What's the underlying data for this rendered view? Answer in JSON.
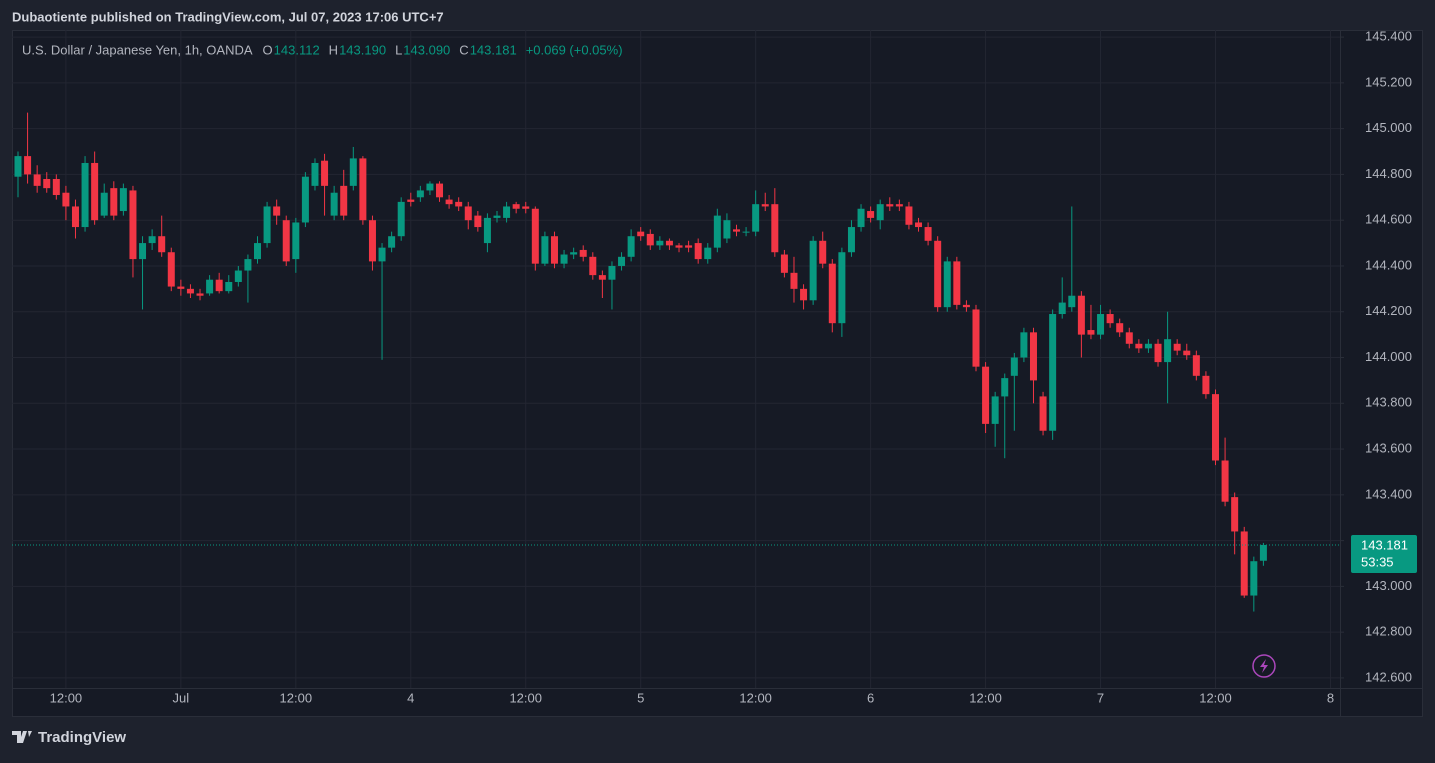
{
  "page": {
    "published": "Dubaotiente published on TradingView.com, Jul 07, 2023 17:06 UTC+7",
    "brand": "TradingView"
  },
  "chart_data": {
    "type": "candlestick",
    "title": "U.S. Dollar / Japanese Yen, 1h, OANDA",
    "header_values": [
      {
        "key": "O",
        "value": "143.112"
      },
      {
        "key": "H",
        "value": "143.190"
      },
      {
        "key": "L",
        "value": "143.090"
      },
      {
        "key": "C",
        "value": "143.181"
      }
    ],
    "change": "+0.069 (+0.05%)",
    "countdown": "53:35",
    "up_color": "#089981",
    "down_color": "#f23645",
    "grid": true,
    "ylim": [
      142.556,
      145.431
    ],
    "yticks": [
      {
        "value": 142.6,
        "label": "142.600"
      },
      {
        "value": 142.8,
        "label": "142.800"
      },
      {
        "value": 143.0,
        "label": "143.000"
      },
      {
        "value": 143.2,
        "label": "143.200"
      },
      {
        "value": 143.4,
        "label": "143.400"
      },
      {
        "value": 143.6,
        "label": "143.600"
      },
      {
        "value": 143.8,
        "label": "143.800"
      },
      {
        "value": 144.0,
        "label": "144.000"
      },
      {
        "value": 144.2,
        "label": "144.200"
      },
      {
        "value": 144.4,
        "label": "144.400"
      },
      {
        "value": 144.6,
        "label": "144.600"
      },
      {
        "value": 144.8,
        "label": "144.800"
      },
      {
        "value": 145.0,
        "label": "145.000"
      },
      {
        "value": 145.2,
        "label": "145.200"
      },
      {
        "value": 145.4,
        "label": "145.400"
      }
    ],
    "categories": [
      null,
      null,
      null,
      null,
      null,
      "12:00",
      null,
      null,
      null,
      null,
      null,
      null,
      null,
      null,
      null,
      null,
      null,
      "Jul",
      null,
      null,
      null,
      null,
      null,
      null,
      null,
      null,
      null,
      null,
      null,
      "12:00",
      null,
      null,
      null,
      null,
      null,
      null,
      null,
      null,
      null,
      null,
      null,
      "4",
      null,
      null,
      null,
      null,
      null,
      null,
      null,
      null,
      null,
      null,
      null,
      "12:00",
      null,
      null,
      null,
      null,
      null,
      null,
      null,
      null,
      null,
      null,
      null,
      "5",
      null,
      null,
      null,
      null,
      null,
      null,
      null,
      null,
      null,
      null,
      null,
      "12:00",
      null,
      null,
      null,
      null,
      null,
      null,
      null,
      null,
      null,
      null,
      null,
      "6",
      null,
      null,
      null,
      null,
      null,
      null,
      null,
      null,
      null,
      null,
      null,
      "12:00",
      null,
      null,
      null,
      null,
      null,
      null,
      null,
      null,
      null,
      null,
      null,
      "7",
      null,
      null,
      null,
      null,
      null,
      null,
      null,
      null,
      null,
      null,
      null,
      "12:00",
      null,
      null,
      null,
      null,
      null,
      null,
      null,
      null,
      null,
      null,
      null,
      "8"
    ],
    "open": [
      144.79,
      144.88,
      144.8,
      144.78,
      144.78,
      144.72,
      144.66,
      144.57,
      144.85,
      144.62,
      144.74,
      144.64,
      144.73,
      144.43,
      144.5,
      144.53,
      144.46,
      144.31,
      144.3,
      144.28,
      144.28,
      144.34,
      144.29,
      144.33,
      144.38,
      144.43,
      144.5,
      144.66,
      144.6,
      144.43,
      144.59,
      144.75,
      144.86,
      144.62,
      144.75,
      144.75,
      144.87,
      144.6,
      144.42,
      144.48,
      144.53,
      144.69,
      144.7,
      144.73,
      144.76,
      144.69,
      144.68,
      144.66,
      144.62,
      144.5,
      144.61,
      144.61,
      144.67,
      144.66,
      144.65,
      144.41,
      144.53,
      144.41,
      144.45,
      144.47,
      144.44,
      144.36,
      144.34,
      144.4,
      144.44,
      144.55,
      144.54,
      144.49,
      144.51,
      144.49,
      144.49,
      144.5,
      144.43,
      144.48,
      144.52,
      144.56,
      144.55,
      144.55,
      144.67,
      144.67,
      144.45,
      144.37,
      144.3,
      144.25,
      144.51,
      144.41,
      144.15,
      144.46,
      144.57,
      144.64,
      144.6,
      144.67,
      144.67,
      144.66,
      144.59,
      144.57,
      144.51,
      144.22,
      144.42,
      144.23,
      144.21,
      143.96,
      143.71,
      143.83,
      143.92,
      144.0,
      144.11,
      143.83,
      143.68,
      144.19,
      144.22,
      144.27,
      144.12,
      144.1,
      144.19,
      144.15,
      144.11,
      144.06,
      144.04,
      144.06,
      143.98,
      144.06,
      144.03,
      144.01,
      143.92,
      143.84,
      143.55,
      143.39,
      143.24,
      142.96,
      143.112,
      null,
      null,
      null,
      null,
      null,
      null,
      null
    ],
    "high": [
      144.9,
      145.07,
      144.84,
      144.81,
      144.8,
      144.75,
      144.69,
      144.88,
      144.9,
      144.76,
      144.77,
      144.76,
      144.75,
      144.53,
      144.56,
      144.62,
      144.48,
      144.34,
      144.32,
      144.3,
      144.36,
      144.37,
      144.36,
      144.4,
      144.45,
      144.53,
      144.68,
      144.69,
      144.62,
      144.61,
      144.81,
      144.87,
      144.89,
      144.75,
      144.82,
      144.92,
      144.88,
      144.62,
      144.5,
      144.55,
      144.7,
      144.72,
      144.75,
      144.77,
      144.77,
      144.71,
      144.7,
      144.68,
      144.64,
      144.63,
      144.64,
      144.68,
      144.68,
      144.68,
      144.66,
      144.55,
      144.55,
      144.47,
      144.48,
      144.49,
      144.46,
      144.38,
      144.42,
      144.46,
      144.56,
      144.57,
      144.56,
      144.53,
      144.52,
      144.5,
      144.51,
      144.52,
      144.5,
      144.65,
      144.63,
      144.58,
      144.57,
      144.73,
      144.72,
      144.74,
      144.47,
      144.44,
      144.32,
      144.53,
      144.55,
      144.43,
      144.48,
      144.6,
      144.67,
      144.66,
      144.69,
      144.7,
      144.69,
      144.68,
      144.61,
      144.59,
      144.53,
      144.44,
      144.44,
      144.25,
      144.23,
      143.98,
      143.85,
      143.93,
      144.02,
      144.13,
      144.13,
      143.85,
      144.21,
      144.35,
      144.66,
      144.29,
      144.23,
      144.23,
      144.21,
      144.17,
      144.13,
      144.08,
      144.08,
      144.08,
      144.2,
      144.08,
      144.06,
      144.03,
      143.94,
      143.86,
      143.65,
      143.41,
      143.26,
      143.13,
      143.19,
      null,
      null,
      null,
      null,
      null,
      null,
      null
    ],
    "low": [
      144.7,
      144.76,
      144.72,
      144.72,
      144.69,
      144.6,
      144.52,
      144.55,
      144.58,
      144.61,
      144.6,
      144.62,
      144.35,
      144.21,
      144.47,
      144.44,
      144.29,
      144.27,
      144.26,
      144.25,
      144.27,
      144.28,
      144.28,
      144.31,
      144.24,
      144.41,
      144.48,
      144.58,
      144.4,
      144.37,
      144.57,
      144.73,
      144.62,
      144.6,
      144.6,
      144.73,
      144.58,
      144.38,
      143.99,
      144.46,
      144.51,
      144.66,
      144.68,
      144.71,
      144.68,
      144.65,
      144.64,
      144.56,
      144.55,
      144.46,
      144.59,
      144.59,
      144.63,
      144.63,
      144.38,
      144.4,
      144.39,
      144.39,
      144.43,
      144.42,
      144.34,
      144.26,
      144.21,
      144.38,
      144.42,
      144.51,
      144.47,
      144.47,
      144.47,
      144.46,
      144.46,
      144.41,
      144.41,
      144.46,
      144.5,
      144.53,
      144.53,
      144.53,
      144.64,
      144.44,
      144.35,
      144.24,
      144.21,
      144.23,
      144.39,
      144.11,
      144.09,
      144.44,
      144.55,
      144.59,
      144.56,
      144.64,
      144.64,
      144.56,
      144.55,
      144.49,
      144.2,
      144.2,
      144.21,
      144.2,
      143.94,
      143.67,
      143.61,
      143.56,
      143.68,
      143.98,
      143.8,
      143.66,
      143.64,
      144.17,
      144.2,
      144.0,
      144.08,
      144.08,
      144.13,
      144.09,
      144.04,
      144.02,
      144.02,
      143.96,
      143.8,
      144.01,
      143.99,
      143.9,
      143.82,
      143.53,
      143.35,
      143.14,
      142.95,
      142.89,
      143.09,
      null,
      null,
      null,
      null,
      null,
      null,
      null
    ],
    "close": [
      144.88,
      144.8,
      144.75,
      144.74,
      144.71,
      144.66,
      144.57,
      144.85,
      144.6,
      144.72,
      144.62,
      144.74,
      144.43,
      144.5,
      144.53,
      144.46,
      144.31,
      144.3,
      144.28,
      144.27,
      144.34,
      144.29,
      144.33,
      144.38,
      144.43,
      144.5,
      144.66,
      144.62,
      144.42,
      144.59,
      144.79,
      144.85,
      144.75,
      144.72,
      144.62,
      144.87,
      144.6,
      144.42,
      144.48,
      144.53,
      144.68,
      144.68,
      144.73,
      144.76,
      144.7,
      144.67,
      144.66,
      144.6,
      144.57,
      144.61,
      144.62,
      144.66,
      144.65,
      144.65,
      144.41,
      144.53,
      144.41,
      144.45,
      144.46,
      144.44,
      144.36,
      144.34,
      144.4,
      144.44,
      144.53,
      144.53,
      144.49,
      144.51,
      144.49,
      144.48,
      144.48,
      144.43,
      144.48,
      144.62,
      144.6,
      144.55,
      144.55,
      144.67,
      144.66,
      144.46,
      144.37,
      144.3,
      144.25,
      144.51,
      144.41,
      144.15,
      144.46,
      144.57,
      144.65,
      144.61,
      144.67,
      144.66,
      144.66,
      144.58,
      144.57,
      144.51,
      144.22,
      144.42,
      144.23,
      144.22,
      143.96,
      143.71,
      143.83,
      143.91,
      144.0,
      144.11,
      143.9,
      143.68,
      144.19,
      144.24,
      144.27,
      144.1,
      144.1,
      144.19,
      144.15,
      144.11,
      144.06,
      144.04,
      144.06,
      143.98,
      144.08,
      144.03,
      144.01,
      143.92,
      143.84,
      143.55,
      143.37,
      143.24,
      142.96,
      143.11,
      143.181,
      null,
      null,
      null,
      null,
      null,
      null,
      null
    ]
  }
}
